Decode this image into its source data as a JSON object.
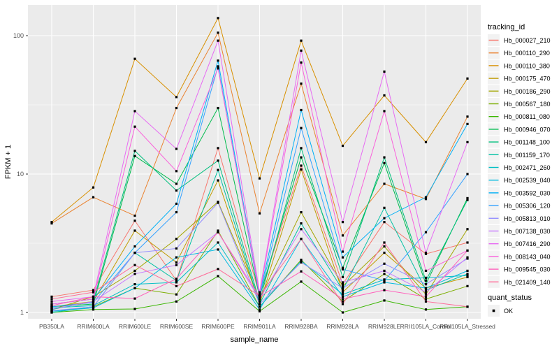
{
  "figure": {
    "background": "#FFFFFF",
    "panel_background": "#EBEBEB",
    "grid_color": "#FFFFFF",
    "axis_text_color": "#4D4D4D",
    "axis_title_color": "#000000",
    "legend_key_background": "#F2F2F2",
    "point_color": "#000000"
  },
  "chart_data": {
    "type": "line",
    "title": "",
    "xlabel": "sample_name",
    "ylabel": "FPKM + 1",
    "y_scale": "log10",
    "y_ticks": [
      1,
      10,
      100
    ],
    "y_tick_labels": [
      "1",
      "10",
      "100"
    ],
    "y_minor_ticks": [
      3.1623,
      31.623
    ],
    "ylim_log": [
      0.9,
      166
    ],
    "grid": true,
    "legend_position": "right",
    "point_shape": "square",
    "categories": [
      "PB350LA",
      "RRIM600LA",
      "RRIM600LE",
      "RRIM600SE",
      "RRIM600PE",
      "RRIM901LA",
      "RRIM928BA",
      "RRIM928LA",
      "RRIM928LE",
      "RRII105LA_Control",
      "RRII105LA_Stressed"
    ],
    "legend_title": "tracking_id",
    "series": [
      {
        "name": "Hb_000027_210",
        "color": "#F8766D",
        "values": [
          1.3,
          1.45,
          4.6,
          1.7,
          15.4,
          1.33,
          11.5,
          1.6,
          4.5,
          2.65,
          3.2
        ]
      },
      {
        "name": "Hb_000110_290",
        "color": "#EA8331",
        "values": [
          4.4,
          6.8,
          5.0,
          30,
          105,
          5.2,
          45,
          3.6,
          8.5,
          6.6,
          26
        ]
      },
      {
        "name": "Hb_000110_380",
        "color": "#D89000",
        "values": [
          4.5,
          8.0,
          68,
          36,
          134,
          9.3,
          92,
          16,
          37,
          17,
          49
        ]
      },
      {
        "name": "Hb_000175_470",
        "color": "#C09B00",
        "values": [
          1.1,
          1.2,
          3.9,
          2.3,
          9.0,
          1.15,
          10.8,
          1.4,
          2.7,
          1.5,
          1.8
        ]
      },
      {
        "name": "Hb_000186_290",
        "color": "#A3A500",
        "values": [
          1.05,
          1.3,
          2.0,
          3.4,
          6.3,
          1.25,
          5.3,
          1.55,
          3.0,
          1.35,
          4.0
        ]
      },
      {
        "name": "Hb_000567_180",
        "color": "#7CAE00",
        "values": [
          1.02,
          1.1,
          1.5,
          1.35,
          3.9,
          1.1,
          2.4,
          1.2,
          1.9,
          1.25,
          1.55
        ]
      },
      {
        "name": "Hb_000811_080",
        "color": "#39B600",
        "values": [
          1.0,
          1.05,
          1.06,
          1.2,
          1.83,
          1.02,
          1.67,
          1.0,
          1.22,
          1.05,
          1.1
        ]
      },
      {
        "name": "Hb_000946_070",
        "color": "#00BB4E",
        "values": [
          1.1,
          1.15,
          13.5,
          8.5,
          30,
          1.3,
          13.2,
          2.1,
          12.0,
          1.6,
          6.7
        ]
      },
      {
        "name": "Hb_001148_100",
        "color": "#00BF7D",
        "values": [
          1.05,
          1.2,
          14.7,
          7.6,
          12.5,
          1.2,
          15.4,
          1.8,
          13.2,
          1.7,
          6.5
        ]
      },
      {
        "name": "Hb_001159_170",
        "color": "#00C1A3",
        "values": [
          1.0,
          1.1,
          2.7,
          1.7,
          10.7,
          1.15,
          4.4,
          1.45,
          5.7,
          1.45,
          1.9
        ]
      },
      {
        "name": "Hb_002471_260",
        "color": "#00BFC4",
        "values": [
          1.08,
          1.12,
          1.6,
          1.65,
          3.2,
          1.1,
          2.36,
          1.35,
          1.73,
          1.78,
          1.85
        ]
      },
      {
        "name": "Hb_002539_040",
        "color": "#00BAE0",
        "values": [
          1.02,
          1.08,
          1.5,
          2.5,
          2.85,
          1.05,
          3.4,
          1.3,
          1.65,
          1.5,
          2.0
        ]
      },
      {
        "name": "Hb_003592_030",
        "color": "#00B0F6",
        "values": [
          1.15,
          1.25,
          3.0,
          6.1,
          66,
          1.35,
          29,
          2.5,
          4.8,
          6.8,
          23
        ]
      },
      {
        "name": "Hb_005306_120",
        "color": "#35A2FF",
        "values": [
          1.1,
          1.18,
          2.7,
          5.3,
          60,
          1.3,
          21.5,
          2.05,
          1.7,
          3.8,
          10
        ]
      },
      {
        "name": "Hb_005813_010",
        "color": "#9590FF",
        "values": [
          1.03,
          1.1,
          2.7,
          2.9,
          6.2,
          1.15,
          2.3,
          1.5,
          2.25,
          1.6,
          2.45
        ]
      },
      {
        "name": "Hb_007138_030",
        "color": "#C77CFF",
        "values": [
          1.06,
          1.2,
          1.9,
          2.2,
          3.8,
          1.25,
          4.0,
          1.65,
          2.0,
          1.4,
          2.5
        ]
      },
      {
        "name": "Hb_007416_290",
        "color": "#E76BF3",
        "values": [
          1.2,
          1.3,
          28.5,
          15.2,
          92,
          1.4,
          78,
          4.5,
          55,
          2.7,
          17
        ]
      },
      {
        "name": "Hb_008143_040",
        "color": "#FA62DB",
        "values": [
          1.15,
          1.25,
          22,
          10.5,
          58,
          1.35,
          64,
          2.75,
          28.5,
          2.0,
          2.8
        ]
      },
      {
        "name": "Hb_009545_030",
        "color": "#FF62BC",
        "values": [
          1.12,
          1.3,
          1.26,
          1.75,
          3.8,
          1.3,
          1.98,
          1.25,
          1.45,
          1.3,
          2.8
        ]
      },
      {
        "name": "Hb_021409_140",
        "color": "#FF6A98",
        "values": [
          1.25,
          1.4,
          2.2,
          1.55,
          2.06,
          1.32,
          3.4,
          1.15,
          3.2,
          1.2,
          1.1
        ]
      }
    ],
    "legend2": {
      "title": "quant_status",
      "items": [
        {
          "label": "OK",
          "marker": "black-square"
        }
      ]
    }
  }
}
